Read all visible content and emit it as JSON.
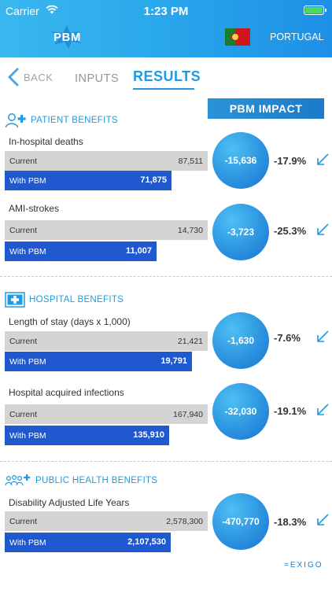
{
  "status_bar": {
    "carrier": "Carrier",
    "time": "1:23 PM"
  },
  "header": {
    "logo_text": "PBM",
    "country": "PORTUGAL"
  },
  "nav": {
    "back_label": "BACK",
    "tab_inputs": "INPUTS",
    "tab_results": "RESULTS"
  },
  "impact_header": "PBM IMPACT",
  "sections": {
    "patient": {
      "title": "PATIENT BENEFITS",
      "metrics": [
        {
          "label": "In-hospital deaths",
          "current_label": "Current",
          "current_value": "87,511",
          "pbm_label": "With PBM",
          "pbm_value": "71,875",
          "impact": "-15,636",
          "percent": "-17.9%",
          "pbm_ratio": 0.821
        },
        {
          "label": "AMI-strokes",
          "current_label": "Current",
          "current_value": "14,730",
          "pbm_label": "With PBM",
          "pbm_value": "11,007",
          "impact": "-3,723",
          "percent": "-25.3%",
          "pbm_ratio": 0.747
        }
      ]
    },
    "hospital": {
      "title": "HOSPITAL BENEFITS",
      "metrics": [
        {
          "label": "Length of stay (days x 1,000)",
          "current_label": "Current",
          "current_value": "21,421",
          "pbm_label": "With PBM",
          "pbm_value": "19,791",
          "impact": "-1,630",
          "percent": "-7.6%",
          "pbm_ratio": 0.924
        },
        {
          "label": "Hospital acquired infections",
          "current_label": "Current",
          "current_value": "167,940",
          "pbm_label": "With PBM",
          "pbm_value": "135,910",
          "impact": "-32,030",
          "percent": "-19.1%",
          "pbm_ratio": 0.809
        }
      ]
    },
    "public": {
      "title": "PUBLIC HEALTH BENEFITS",
      "metrics": [
        {
          "label": "Disability Adjusted Life Years",
          "current_label": "Current",
          "current_value": "2,578,300",
          "pbm_label": "With PBM",
          "pbm_value": "2,107,530",
          "impact": "-470,770",
          "percent": "-18.3%",
          "pbm_ratio": 0.817
        }
      ]
    }
  },
  "footer": {
    "brand": "=EXIGO"
  },
  "colors": {
    "accent": "#1e9be4",
    "pbm_bar": "#1f58cf",
    "current_bar": "#d4d4d4",
    "header_start": "#3ab7ee",
    "header_end": "#1e8fe6"
  },
  "icons": [
    "wifi-icon",
    "battery-icon",
    "pbm-logo",
    "portugal-flag-icon",
    "chevron-left-icon",
    "patient-icon",
    "hospital-cross-icon",
    "public-health-icon",
    "trend-down-arrow-icon"
  ]
}
